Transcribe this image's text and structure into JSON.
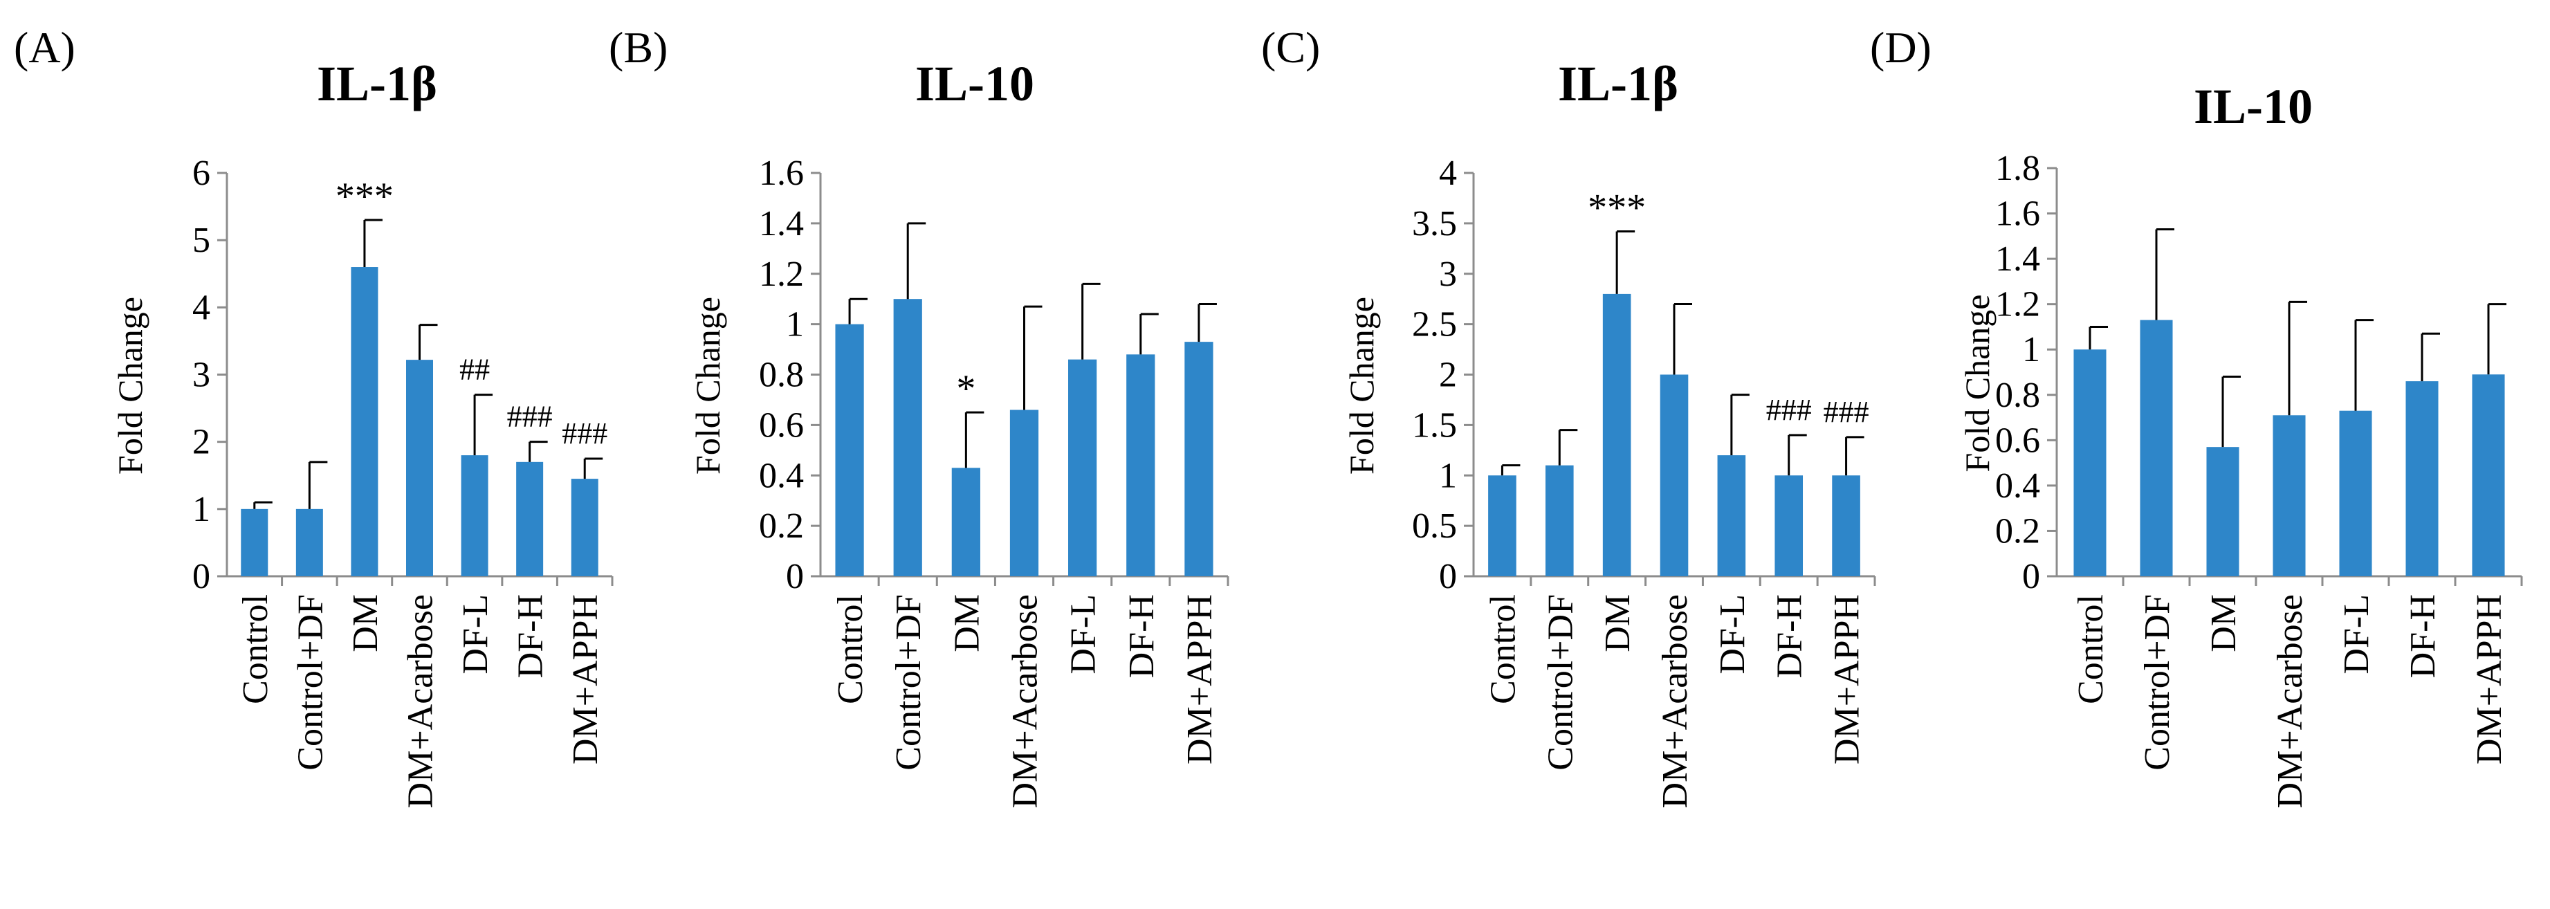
{
  "figure": {
    "panels": [
      "(A)",
      "(B)",
      "(C)",
      "(D)"
    ]
  },
  "colors": {
    "bar": "#2e86c9",
    "axis": "#8c8c8c",
    "error": "#000000",
    "text": "#000000"
  },
  "chart_data": [
    {
      "panel": "(A)",
      "type": "bar",
      "title": "IL-1β",
      "ylabel": "Fold Change",
      "xlabel": "",
      "ylim": [
        0,
        6
      ],
      "yticks": [
        "0",
        "1",
        "2",
        "3",
        "4",
        "5",
        "6"
      ],
      "grid": false,
      "categories": [
        "Control",
        "Control+DF",
        "DM",
        "DM+Acarbose",
        "DF-L",
        "DF-H",
        "DM+APPH"
      ],
      "values": [
        1.0,
        1.0,
        4.6,
        3.22,
        1.8,
        1.7,
        1.45
      ],
      "errors": [
        0.1,
        0.7,
        0.7,
        0.52,
        0.9,
        0.3,
        0.3
      ],
      "annotations": [
        "",
        "",
        "***",
        "",
        "##",
        "###",
        "###"
      ]
    },
    {
      "panel": "(B)",
      "type": "bar",
      "title": "IL-10",
      "ylabel": "Fold Change",
      "xlabel": "",
      "ylim": [
        0,
        1.6
      ],
      "yticks": [
        "0",
        "0.2",
        "0.4",
        "0.6",
        "0.8",
        "1",
        "1.2",
        "1.4",
        "1.6"
      ],
      "grid": false,
      "categories": [
        "Control",
        "Control+DF",
        "DM",
        "DM+Acarbose",
        "DF-L",
        "DF-H",
        "DM+APPH"
      ],
      "values": [
        1.0,
        1.1,
        0.43,
        0.66,
        0.86,
        0.88,
        0.93
      ],
      "errors": [
        0.1,
        0.3,
        0.22,
        0.41,
        0.3,
        0.16,
        0.15
      ],
      "annotations": [
        "",
        "",
        "*",
        "",
        "",
        "",
        ""
      ]
    },
    {
      "panel": "(C)",
      "type": "bar",
      "title": "IL-1β",
      "ylabel": "Fold Change",
      "xlabel": "",
      "ylim": [
        0,
        4
      ],
      "yticks": [
        "0",
        "0.5",
        "1",
        "1.5",
        "2",
        "2.5",
        "3",
        "3.5",
        "4"
      ],
      "grid": false,
      "categories": [
        "Control",
        "Control+DF",
        "DM",
        "DM+Acarbose",
        "DF-L",
        "DF-H",
        "DM+APPH"
      ],
      "values": [
        1.0,
        1.1,
        2.8,
        2.0,
        1.2,
        1.0,
        1.0
      ],
      "errors": [
        0.1,
        0.35,
        0.62,
        0.7,
        0.6,
        0.4,
        0.38
      ],
      "annotations": [
        "",
        "",
        "***",
        "",
        "",
        "###",
        "###"
      ]
    },
    {
      "panel": "(D)",
      "type": "bar",
      "title": "IL-10",
      "ylabel": "Fold Change",
      "xlabel": "",
      "ylim": [
        0,
        1.8
      ],
      "yticks": [
        "0",
        "0.2",
        "0.4",
        "0.6",
        "0.8",
        "1",
        "1.2",
        "1.4",
        "1.6",
        "1.8"
      ],
      "grid": false,
      "categories": [
        "Control",
        "Control+DF",
        "DM",
        "DM+Acarbose",
        "DF-L",
        "DF-H",
        "DM+APPH"
      ],
      "values": [
        1.0,
        1.13,
        0.57,
        0.71,
        0.73,
        0.86,
        0.89
      ],
      "errors": [
        0.1,
        0.4,
        0.31,
        0.5,
        0.4,
        0.21,
        0.31
      ],
      "annotations": [
        "",
        "",
        "",
        "",
        "",
        "",
        ""
      ]
    }
  ]
}
